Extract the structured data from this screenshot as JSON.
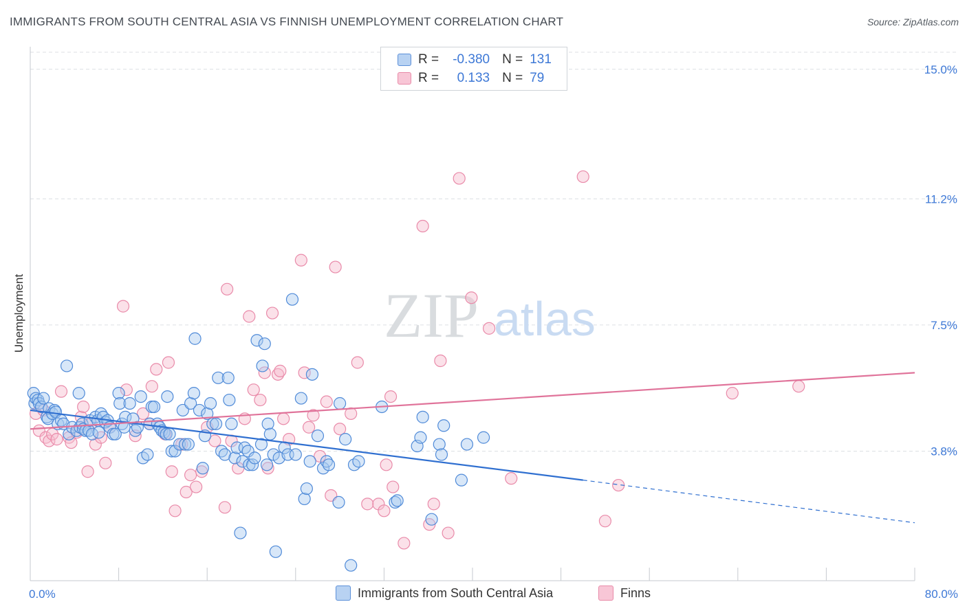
{
  "header": {
    "title": "IMMIGRANTS FROM SOUTH CENTRAL ASIA VS FINNISH UNEMPLOYMENT CORRELATION CHART",
    "source": "Source: ZipAtlas.com"
  },
  "watermark": {
    "zip": "ZIP",
    "atlas": "atlas"
  },
  "stats": [
    {
      "r_label": "R =",
      "r_value": "-0.380",
      "n_label": "N =",
      "n_value": "131"
    },
    {
      "r_label": "R =",
      "r_value": "0.133",
      "n_label": "N =",
      "n_value": "79"
    }
  ],
  "legend": {
    "blue_label": "Immigrants from South Central Asia",
    "pink_label": "Finns"
  },
  "colors": {
    "blue_fill": "#a9c9f0",
    "blue_stroke": "#4f8ad8",
    "blue_line": "#2f6fd0",
    "pink_fill": "#f6bccf",
    "pink_stroke": "#e98aa9",
    "pink_line": "#e0739a",
    "axis_label": "#3d78d6",
    "grid": "#dcdfe3"
  },
  "chart_data": {
    "type": "scatter",
    "title": "IMMIGRANTS FROM SOUTH CENTRAL ASIA VS FINNISH UNEMPLOYMENT CORRELATION CHART",
    "xlabel": "",
    "ylabel": "Unemployment",
    "xlim": [
      0,
      80
    ],
    "ylim": [
      0,
      15.5
    ],
    "x_tick_labels": [
      "0.0%",
      "80.0%"
    ],
    "y_ticks": [
      3.8,
      7.5,
      11.2,
      15.0
    ],
    "y_tick_labels": [
      "3.8%",
      "7.5%",
      "11.2%",
      "15.0%"
    ],
    "grid": true,
    "legend_position": "bottom-center",
    "series": [
      {
        "name": "Immigrants from South Central Asia",
        "color": "#4f8ad8",
        "trend": {
          "x": [
            0,
            50
          ],
          "y": [
            5.0,
            2.95
          ],
          "dashed_to": [
            80,
            1.7
          ]
        },
        "points": [
          [
            0.3,
            5.5
          ],
          [
            0.4,
            5.2
          ],
          [
            0.5,
            5.35
          ],
          [
            0.7,
            5.3
          ],
          [
            0.8,
            5.2
          ],
          [
            1.0,
            5.1
          ],
          [
            1.2,
            5.35
          ],
          [
            1.5,
            4.8
          ],
          [
            1.6,
            4.75
          ],
          [
            1.7,
            5.05
          ],
          [
            2.0,
            4.9
          ],
          [
            2.2,
            5.0
          ],
          [
            2.3,
            4.95
          ],
          [
            2.5,
            4.6
          ],
          [
            2.8,
            4.7
          ],
          [
            3.0,
            4.6
          ],
          [
            3.3,
            6.3
          ],
          [
            3.5,
            4.3
          ],
          [
            3.8,
            4.5
          ],
          [
            4.2,
            4.4
          ],
          [
            4.4,
            5.5
          ],
          [
            4.5,
            4.5
          ],
          [
            4.7,
            4.6
          ],
          [
            4.8,
            4.45
          ],
          [
            5.0,
            4.4
          ],
          [
            5.3,
            4.4
          ],
          [
            5.4,
            4.7
          ],
          [
            5.6,
            4.3
          ],
          [
            5.9,
            4.8
          ],
          [
            6.1,
            4.7
          ],
          [
            6.2,
            4.35
          ],
          [
            6.4,
            4.9
          ],
          [
            6.6,
            4.8
          ],
          [
            6.8,
            4.65
          ],
          [
            7.0,
            4.7
          ],
          [
            7.2,
            4.5
          ],
          [
            7.5,
            4.3
          ],
          [
            7.7,
            4.3
          ],
          [
            8.0,
            5.5
          ],
          [
            8.1,
            5.2
          ],
          [
            8.3,
            4.6
          ],
          [
            8.5,
            4.5
          ],
          [
            8.6,
            4.8
          ],
          [
            9.0,
            5.2
          ],
          [
            9.3,
            4.75
          ],
          [
            9.5,
            4.4
          ],
          [
            9.7,
            4.5
          ],
          [
            10.0,
            5.4
          ],
          [
            10.2,
            3.6
          ],
          [
            10.6,
            3.7
          ],
          [
            10.8,
            4.6
          ],
          [
            11.0,
            5.1
          ],
          [
            11.2,
            5.1
          ],
          [
            11.5,
            4.6
          ],
          [
            11.7,
            4.5
          ],
          [
            11.9,
            4.4
          ],
          [
            12.1,
            4.35
          ],
          [
            12.3,
            4.3
          ],
          [
            12.4,
            5.4
          ],
          [
            12.6,
            4.3
          ],
          [
            12.8,
            3.8
          ],
          [
            13.1,
            3.8
          ],
          [
            13.5,
            4.0
          ],
          [
            13.8,
            5.0
          ],
          [
            14.0,
            4.0
          ],
          [
            14.3,
            4.0
          ],
          [
            14.5,
            5.2
          ],
          [
            14.8,
            5.5
          ],
          [
            14.9,
            7.1
          ],
          [
            15.3,
            5.0
          ],
          [
            15.6,
            3.3
          ],
          [
            15.8,
            4.25
          ],
          [
            16.0,
            4.9
          ],
          [
            16.3,
            5.2
          ],
          [
            16.5,
            4.6
          ],
          [
            16.8,
            4.6
          ],
          [
            17.0,
            5.95
          ],
          [
            17.3,
            3.8
          ],
          [
            17.6,
            3.7
          ],
          [
            17.9,
            5.95
          ],
          [
            18.0,
            5.3
          ],
          [
            18.2,
            4.6
          ],
          [
            18.5,
            3.6
          ],
          [
            18.7,
            3.9
          ],
          [
            19.0,
            1.4
          ],
          [
            19.2,
            3.5
          ],
          [
            19.4,
            3.9
          ],
          [
            19.7,
            3.8
          ],
          [
            19.8,
            3.4
          ],
          [
            20.1,
            3.4
          ],
          [
            20.3,
            3.6
          ],
          [
            20.5,
            7.05
          ],
          [
            20.9,
            4.0
          ],
          [
            21.0,
            6.3
          ],
          [
            21.2,
            6.95
          ],
          [
            21.4,
            3.4
          ],
          [
            21.5,
            4.6
          ],
          [
            21.7,
            4.3
          ],
          [
            22.0,
            3.7
          ],
          [
            22.2,
            0.85
          ],
          [
            22.5,
            3.6
          ],
          [
            23.0,
            3.9
          ],
          [
            23.3,
            3.7
          ],
          [
            23.7,
            8.25
          ],
          [
            24.0,
            3.7
          ],
          [
            24.5,
            5.35
          ],
          [
            24.8,
            2.4
          ],
          [
            25.0,
            2.7
          ],
          [
            25.3,
            3.5
          ],
          [
            25.5,
            6.05
          ],
          [
            26.0,
            4.25
          ],
          [
            26.5,
            3.3
          ],
          [
            26.8,
            3.5
          ],
          [
            27.0,
            3.4
          ],
          [
            27.9,
            2.3
          ],
          [
            28.0,
            5.2
          ],
          [
            28.5,
            4.15
          ],
          [
            29.0,
            0.45
          ],
          [
            29.3,
            3.4
          ],
          [
            29.7,
            3.5
          ],
          [
            31.8,
            5.1
          ],
          [
            33.0,
            2.3
          ],
          [
            33.2,
            2.35
          ],
          [
            35.0,
            3.95
          ],
          [
            35.3,
            4.2
          ],
          [
            35.5,
            4.8
          ],
          [
            36.3,
            1.8
          ],
          [
            37.0,
            4.0
          ],
          [
            37.2,
            3.7
          ],
          [
            37.4,
            4.55
          ],
          [
            39.0,
            2.95
          ],
          [
            39.5,
            4.0
          ],
          [
            41.0,
            4.2
          ]
        ]
      },
      {
        "name": "Finns",
        "color": "#e98aa9",
        "trend": {
          "x": [
            0,
            80
          ],
          "y": [
            4.45,
            6.1
          ]
        },
        "points": [
          [
            0.5,
            4.9
          ],
          [
            0.8,
            4.4
          ],
          [
            1.2,
            5.0
          ],
          [
            1.4,
            4.2
          ],
          [
            1.7,
            4.1
          ],
          [
            2.0,
            4.3
          ],
          [
            2.4,
            4.15
          ],
          [
            2.8,
            5.55
          ],
          [
            3.5,
            4.2
          ],
          [
            3.7,
            4.05
          ],
          [
            4.2,
            4.35
          ],
          [
            4.6,
            4.8
          ],
          [
            4.8,
            5.1
          ],
          [
            5.2,
            3.2
          ],
          [
            5.5,
            4.6
          ],
          [
            5.9,
            4.0
          ],
          [
            6.4,
            4.2
          ],
          [
            6.8,
            3.45
          ],
          [
            7.2,
            4.5
          ],
          [
            8.4,
            8.05
          ],
          [
            8.7,
            5.6
          ],
          [
            9.5,
            4.25
          ],
          [
            10.2,
            4.9
          ],
          [
            10.8,
            4.6
          ],
          [
            11.0,
            5.7
          ],
          [
            11.4,
            6.2
          ],
          [
            12.2,
            4.3
          ],
          [
            12.5,
            6.4
          ],
          [
            12.8,
            3.2
          ],
          [
            13.1,
            2.05
          ],
          [
            13.7,
            4.0
          ],
          [
            14.1,
            2.6
          ],
          [
            14.5,
            3.1
          ],
          [
            15.0,
            2.75
          ],
          [
            15.5,
            3.2
          ],
          [
            16.0,
            4.5
          ],
          [
            16.7,
            4.1
          ],
          [
            17.6,
            2.15
          ],
          [
            17.8,
            8.55
          ],
          [
            18.2,
            4.1
          ],
          [
            18.8,
            3.3
          ],
          [
            19.4,
            4.75
          ],
          [
            19.8,
            7.75
          ],
          [
            20.2,
            5.6
          ],
          [
            20.8,
            5.3
          ],
          [
            21.2,
            6.1
          ],
          [
            21.5,
            3.3
          ],
          [
            21.9,
            7.85
          ],
          [
            22.4,
            6.05
          ],
          [
            22.6,
            6.15
          ],
          [
            22.9,
            4.75
          ],
          [
            23.4,
            4.15
          ],
          [
            24.5,
            9.4
          ],
          [
            24.8,
            6.1
          ],
          [
            25.2,
            4.5
          ],
          [
            25.6,
            4.85
          ],
          [
            26.2,
            3.65
          ],
          [
            26.8,
            5.25
          ],
          [
            27.2,
            2.5
          ],
          [
            27.6,
            9.2
          ],
          [
            28.0,
            4.45
          ],
          [
            29.0,
            4.9
          ],
          [
            29.6,
            6.4
          ],
          [
            30.5,
            2.25
          ],
          [
            31.5,
            2.25
          ],
          [
            32.0,
            2.05
          ],
          [
            32.2,
            3.4
          ],
          [
            32.6,
            5.4
          ],
          [
            32.8,
            2.75
          ],
          [
            33.8,
            1.1
          ],
          [
            35.5,
            10.4
          ],
          [
            36.1,
            1.65
          ],
          [
            36.5,
            2.25
          ],
          [
            37.1,
            6.45
          ],
          [
            37.8,
            1.4
          ],
          [
            38.8,
            11.8
          ],
          [
            39.9,
            8.3
          ],
          [
            41.5,
            7.4
          ],
          [
            43.5,
            3.0
          ],
          [
            50.0,
            11.85
          ],
          [
            52.0,
            1.75
          ],
          [
            53.2,
            2.8
          ],
          [
            63.5,
            5.5
          ],
          [
            69.5,
            5.7
          ]
        ]
      }
    ]
  }
}
